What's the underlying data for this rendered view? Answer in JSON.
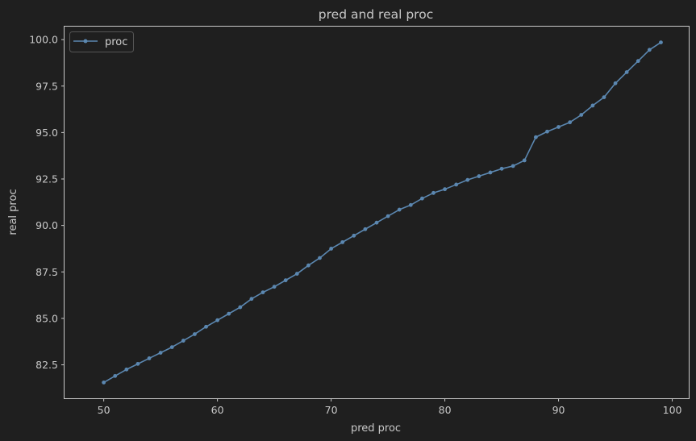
{
  "chart_data": {
    "type": "line",
    "title": "pred and real proc",
    "xlabel": "pred proc",
    "ylabel": "real proc",
    "xlim": [
      46.55,
      101.45
    ],
    "ylim": [
      80.7,
      100.7
    ],
    "xticks": [
      50,
      60,
      70,
      80,
      90,
      100
    ],
    "yticks": [
      82.5,
      85.0,
      87.5,
      90.0,
      92.5,
      95.0,
      97.5,
      100.0
    ],
    "xtick_labels": [
      "50",
      "60",
      "70",
      "80",
      "90",
      "100"
    ],
    "ytick_labels": [
      "82.5",
      "85.0",
      "87.5",
      "90.0",
      "92.5",
      "95.0",
      "97.5",
      "100.0"
    ],
    "grid": false,
    "legend_position": "top-left",
    "colors": {
      "background": "#1f1f1f",
      "axes": "#c8c8c8",
      "series": "#5b87b0"
    },
    "series": [
      {
        "name": "proc",
        "marker": "circle",
        "x": [
          50,
          51,
          52,
          53,
          54,
          55,
          56,
          57,
          58,
          59,
          60,
          61,
          62,
          63,
          64,
          65,
          66,
          67,
          68,
          69,
          70,
          71,
          72,
          73,
          74,
          75,
          76,
          77,
          78,
          79,
          80,
          81,
          82,
          83,
          84,
          85,
          86,
          87,
          88,
          89,
          90,
          91,
          92,
          93,
          94,
          95,
          96,
          97,
          98,
          99
        ],
        "values": [
          81.55,
          81.9,
          82.25,
          82.55,
          82.85,
          83.15,
          83.45,
          83.8,
          84.15,
          84.55,
          84.9,
          85.25,
          85.6,
          86.05,
          86.4,
          86.7,
          87.05,
          87.4,
          87.85,
          88.25,
          88.75,
          89.1,
          89.45,
          89.8,
          90.15,
          90.5,
          90.85,
          91.1,
          91.45,
          91.75,
          91.95,
          92.2,
          92.45,
          92.65,
          92.85,
          93.05,
          93.2,
          93.5,
          94.75,
          95.05,
          95.3,
          95.55,
          95.95,
          96.45,
          96.9,
          97.65,
          98.25,
          98.85,
          99.45,
          99.85
        ]
      }
    ]
  }
}
